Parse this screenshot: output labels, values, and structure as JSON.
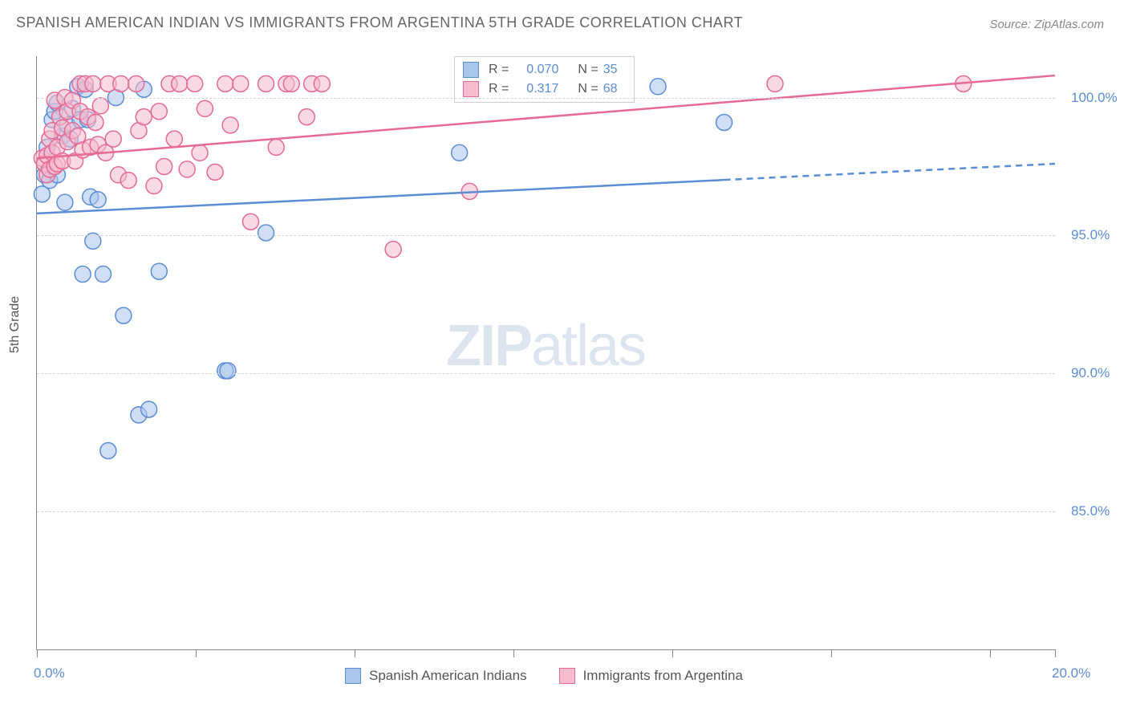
{
  "title": "SPANISH AMERICAN INDIAN VS IMMIGRANTS FROM ARGENTINA 5TH GRADE CORRELATION CHART",
  "source": "Source: ZipAtlas.com",
  "y_axis_label": "5th Grade",
  "watermark": {
    "bold": "ZIP",
    "rest": "atlas"
  },
  "chart": {
    "type": "scatter",
    "xlim": [
      0,
      20
    ],
    "ylim": [
      80,
      101.5
    ],
    "x_ticks": [
      0,
      3.12,
      6.24,
      9.36,
      12.48,
      15.6,
      18.72,
      20
    ],
    "x_tick_labels": {
      "0": "0.0%",
      "20": "20.0%"
    },
    "y_ticks": [
      85,
      90,
      95,
      100
    ],
    "y_tick_labels": [
      "85.0%",
      "90.0%",
      "95.0%",
      "100.0%"
    ],
    "grid_color": "#d5d5d5",
    "background_color": "#ffffff",
    "axis_label_color": "#5a8dd6",
    "marker_radius": 10,
    "marker_opacity": 0.55,
    "series": [
      {
        "name": "Spanish American Indians",
        "color_fill": "#a9c5ec",
        "color_stroke": "#5a8dd6",
        "R": "0.070",
        "N": "35",
        "trend": {
          "y_start": 95.8,
          "y_end": 97.6,
          "solid_until_x": 13.5
        },
        "points": [
          [
            0.1,
            96.5
          ],
          [
            0.15,
            97.2
          ],
          [
            0.2,
            98.2
          ],
          [
            0.25,
            97.0
          ],
          [
            0.3,
            99.2
          ],
          [
            0.35,
            99.5
          ],
          [
            0.4,
            99.8
          ],
          [
            0.4,
            97.2
          ],
          [
            0.5,
            98.6
          ],
          [
            0.55,
            96.2
          ],
          [
            0.6,
            99.0
          ],
          [
            0.65,
            98.5
          ],
          [
            0.7,
            99.6
          ],
          [
            0.8,
            100.4
          ],
          [
            0.85,
            99.2
          ],
          [
            0.9,
            93.6
          ],
          [
            0.95,
            100.3
          ],
          [
            1.0,
            99.2
          ],
          [
            1.05,
            96.4
          ],
          [
            1.1,
            94.8
          ],
          [
            1.2,
            96.3
          ],
          [
            1.3,
            93.6
          ],
          [
            1.4,
            87.2
          ],
          [
            1.55,
            100.0
          ],
          [
            1.7,
            92.1
          ],
          [
            2.0,
            88.5
          ],
          [
            2.1,
            100.3
          ],
          [
            2.2,
            88.7
          ],
          [
            2.4,
            93.7
          ],
          [
            3.7,
            90.1
          ],
          [
            3.75,
            90.1
          ],
          [
            4.5,
            95.1
          ],
          [
            8.3,
            98.0
          ],
          [
            12.2,
            100.4
          ],
          [
            13.5,
            99.1
          ]
        ]
      },
      {
        "name": "Immigrants from Argentina",
        "color_fill": "#f4bccd",
        "color_stroke": "#e66a94",
        "R": "0.317",
        "N": "68",
        "trend": {
          "y_start": 97.8,
          "y_end": 100.8,
          "solid_until_x": 20
        },
        "points": [
          [
            0.1,
            97.8
          ],
          [
            0.15,
            97.6
          ],
          [
            0.2,
            97.9
          ],
          [
            0.2,
            97.2
          ],
          [
            0.25,
            98.5
          ],
          [
            0.25,
            97.4
          ],
          [
            0.3,
            98.0
          ],
          [
            0.3,
            98.8
          ],
          [
            0.35,
            97.5
          ],
          [
            0.35,
            99.9
          ],
          [
            0.4,
            98.2
          ],
          [
            0.4,
            97.6
          ],
          [
            0.45,
            99.3
          ],
          [
            0.5,
            98.9
          ],
          [
            0.5,
            97.7
          ],
          [
            0.55,
            100.0
          ],
          [
            0.6,
            98.4
          ],
          [
            0.6,
            99.5
          ],
          [
            0.7,
            98.8
          ],
          [
            0.7,
            99.9
          ],
          [
            0.75,
            97.7
          ],
          [
            0.8,
            98.6
          ],
          [
            0.85,
            99.5
          ],
          [
            0.85,
            100.5
          ],
          [
            0.9,
            98.1
          ],
          [
            0.95,
            100.5
          ],
          [
            1.0,
            99.3
          ],
          [
            1.05,
            98.2
          ],
          [
            1.1,
            100.5
          ],
          [
            1.15,
            99.1
          ],
          [
            1.2,
            98.3
          ],
          [
            1.25,
            99.7
          ],
          [
            1.35,
            98.0
          ],
          [
            1.4,
            100.5
          ],
          [
            1.5,
            98.5
          ],
          [
            1.6,
            97.2
          ],
          [
            1.65,
            100.5
          ],
          [
            1.8,
            97.0
          ],
          [
            1.95,
            100.5
          ],
          [
            2.0,
            98.8
          ],
          [
            2.1,
            99.3
          ],
          [
            2.3,
            96.8
          ],
          [
            2.4,
            99.5
          ],
          [
            2.5,
            97.5
          ],
          [
            2.6,
            100.5
          ],
          [
            2.7,
            98.5
          ],
          [
            2.8,
            100.5
          ],
          [
            2.95,
            97.4
          ],
          [
            3.1,
            100.5
          ],
          [
            3.2,
            98.0
          ],
          [
            3.3,
            99.6
          ],
          [
            3.5,
            97.3
          ],
          [
            3.7,
            100.5
          ],
          [
            3.8,
            99.0
          ],
          [
            4.0,
            100.5
          ],
          [
            4.2,
            95.5
          ],
          [
            4.5,
            100.5
          ],
          [
            4.7,
            98.2
          ],
          [
            4.9,
            100.5
          ],
          [
            5.0,
            100.5
          ],
          [
            5.3,
            99.3
          ],
          [
            5.4,
            100.5
          ],
          [
            5.6,
            100.5
          ],
          [
            7.0,
            94.5
          ],
          [
            8.5,
            96.6
          ],
          [
            11.5,
            100.5
          ],
          [
            14.5,
            100.5
          ],
          [
            18.2,
            100.5
          ]
        ]
      }
    ]
  },
  "legend_top": {
    "rows": [
      {
        "swatch_fill": "#a9c5ec",
        "swatch_stroke": "#5a8dd6",
        "R": "0.070",
        "N": "35"
      },
      {
        "swatch_fill": "#f4bccd",
        "swatch_stroke": "#e66a94",
        "R": "0.317",
        "N": "68"
      }
    ]
  },
  "legend_bottom": [
    {
      "swatch_fill": "#a9c5ec",
      "swatch_stroke": "#5a8dd6",
      "label": "Spanish American Indians"
    },
    {
      "swatch_fill": "#f4bccd",
      "swatch_stroke": "#e66a94",
      "label": "Immigrants from Argentina"
    }
  ]
}
